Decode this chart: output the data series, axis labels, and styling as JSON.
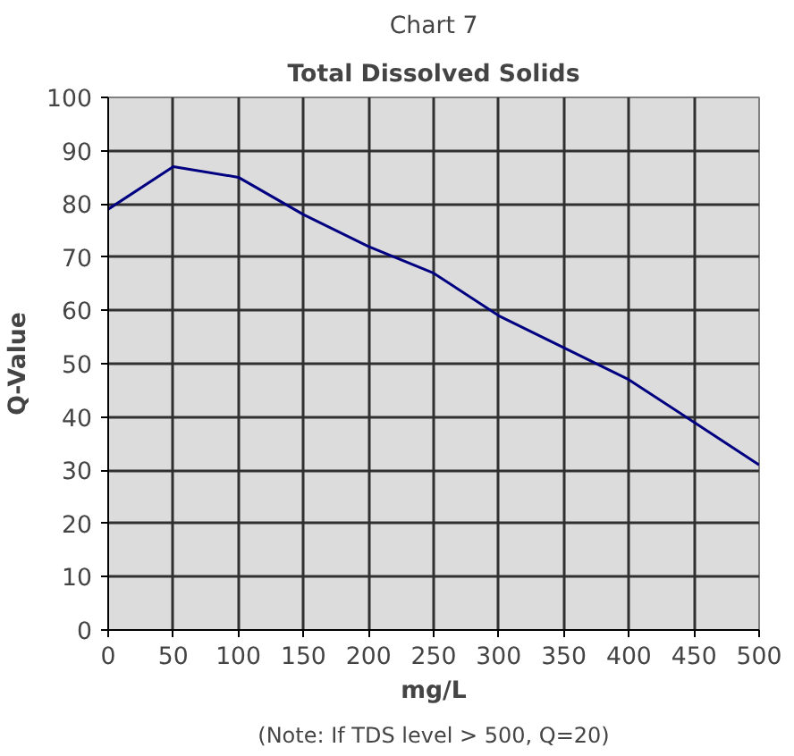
{
  "chart_data": {
    "type": "line",
    "title": "Chart 7",
    "subtitle": "Total Dissolved Solids",
    "xlabel": "mg/L",
    "ylabel": "Q-Value",
    "x": [
      0,
      50,
      100,
      150,
      200,
      250,
      300,
      350,
      400,
      450,
      500
    ],
    "series": [
      {
        "color": "#000080",
        "values": [
          79,
          87,
          85,
          78,
          72,
          67,
          59,
          53,
          47,
          39,
          31
        ]
      }
    ],
    "xlim": [
      0,
      500
    ],
    "xticks": [
      0,
      50,
      100,
      150,
      200,
      250,
      300,
      350,
      400,
      450,
      500
    ],
    "ylim": [
      0,
      100
    ],
    "yticks": [
      0,
      10,
      20,
      30,
      40,
      50,
      60,
      70,
      80,
      90,
      100
    ],
    "grid": true,
    "marker": "none",
    "line_style": "solid",
    "annotations": [
      "(Note: If TDS level > 500, Q=20)"
    ]
  }
}
